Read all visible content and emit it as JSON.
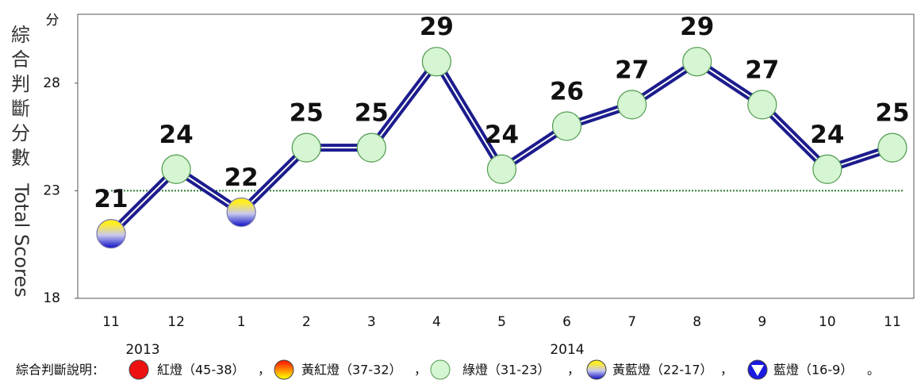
{
  "chart_data": {
    "type": "line",
    "y_unit": "分",
    "y_label_zh": "綜合判斷分數",
    "y_label_en": "Total Scores",
    "categories": [
      "11",
      "12",
      "1",
      "2",
      "3",
      "4",
      "5",
      "6",
      "7",
      "8",
      "9",
      "10",
      "11"
    ],
    "values": [
      21,
      24,
      22,
      25,
      25,
      29,
      24,
      26,
      27,
      29,
      27,
      24,
      25
    ],
    "lights": [
      3,
      2,
      3,
      2,
      2,
      2,
      2,
      2,
      2,
      2,
      2,
      2,
      2
    ],
    "line_color": "#1c1c8e",
    "years": [
      "2013",
      "2014"
    ],
    "reference_line": 23,
    "reference_color": "#2e7d32",
    "ylim": [
      18,
      31.2
    ],
    "yticks": [
      18,
      23,
      28
    ],
    "legend_title": "綜合判斷說明：",
    "legend": [
      {
        "name": "紅燈（45-38）",
        "fill": "#ee1111"
      },
      {
        "name": "黃紅燈（37-32）",
        "fill": "url(#g-yr)"
      },
      {
        "name": "綠燈（31-23）",
        "fill": "#d6f5d2"
      },
      {
        "name": "黃藍燈（22-17）",
        "fill": "url(#g-yb)"
      },
      {
        "name": "藍燈（16-9）",
        "fill": "#1a1ae0"
      }
    ],
    "separator": "，",
    "end_mark": "。"
  }
}
